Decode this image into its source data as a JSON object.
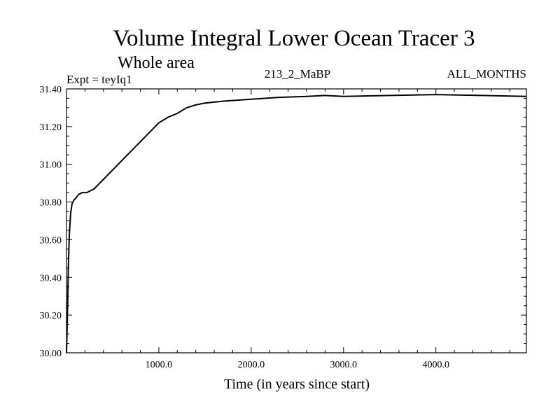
{
  "chart_data": {
    "type": "line",
    "title": "Volume Integral Lower Ocean Tracer 3",
    "subtitle": "Whole area",
    "experiment": "Expt = teyIq1",
    "run_label": "213_2_MaBP",
    "period_label": "ALL_MONTHS",
    "xlabel": "Time (in years since start)",
    "ylabel": "",
    "xlim": [
      0,
      4980
    ],
    "ylim": [
      30.0,
      31.4
    ],
    "x_ticks": [
      1000,
      2000,
      3000,
      4000
    ],
    "x_tick_labels": [
      "1000.0",
      "2000.0",
      "3000.0",
      "4000.0"
    ],
    "y_ticks": [
      30.0,
      30.2,
      30.4,
      30.6,
      30.8,
      31.0,
      31.2,
      31.4
    ],
    "y_tick_labels": [
      "30.00",
      "30.20",
      "30.40",
      "30.60",
      "30.80",
      "31.00",
      "31.20",
      "31.40"
    ],
    "grid": false,
    "series": [
      {
        "name": "Volume Integral Lower Ocean Tracer 3",
        "color": "#000000",
        "x": [
          0,
          10,
          20,
          30,
          45,
          60,
          80,
          100,
          130,
          170,
          220,
          300,
          400,
          500,
          600,
          700,
          800,
          900,
          1000,
          1100,
          1200,
          1300,
          1400,
          1500,
          1700,
          2000,
          2300,
          2600,
          2800,
          3000,
          3500,
          4000,
          4500,
          4980
        ],
        "values": [
          30.0,
          30.2,
          30.45,
          30.62,
          30.74,
          30.79,
          30.81,
          30.82,
          30.84,
          30.85,
          30.85,
          30.87,
          30.92,
          30.97,
          31.02,
          31.07,
          31.12,
          31.17,
          31.22,
          31.25,
          31.27,
          31.3,
          31.315,
          31.325,
          31.335,
          31.345,
          31.355,
          31.36,
          31.365,
          31.36,
          31.365,
          31.37,
          31.365,
          31.36
        ]
      }
    ]
  }
}
